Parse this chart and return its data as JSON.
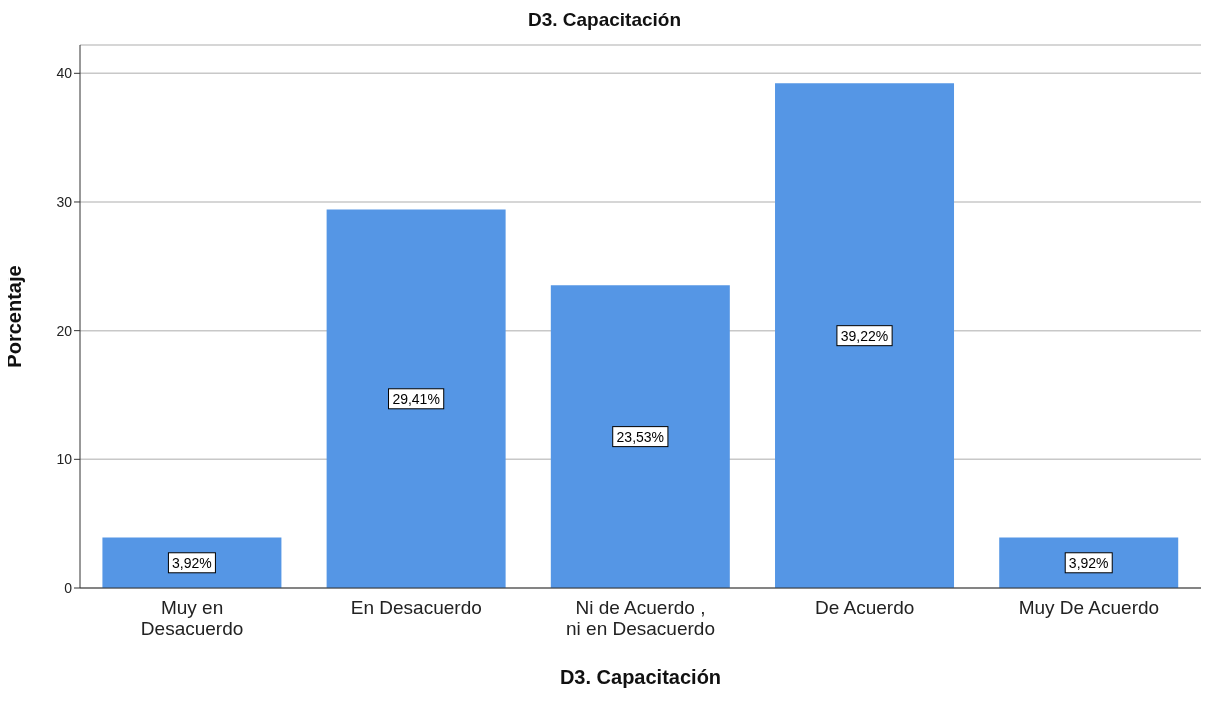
{
  "chart_data": {
    "type": "bar",
    "title": "D3. Capacitación",
    "xlabel": "D3. Capacitación",
    "ylabel": "Porcentaje",
    "categories": [
      "Muy en Desacuerdo",
      "En Desacuerdo",
      "Ni de Acuerdo , ni en Desacuerdo",
      "De Acuerdo",
      "Muy De Acuerdo"
    ],
    "values": [
      3.92,
      29.41,
      23.53,
      39.22,
      3.92
    ],
    "value_labels": [
      "3,92%",
      "29,41%",
      "23,53%",
      "39,22%",
      "3,92%"
    ],
    "color": "#5596e5",
    "ylim": [
      0,
      42.2
    ],
    "yticks": [
      0,
      10,
      20,
      30,
      40
    ],
    "grid": "y"
  }
}
